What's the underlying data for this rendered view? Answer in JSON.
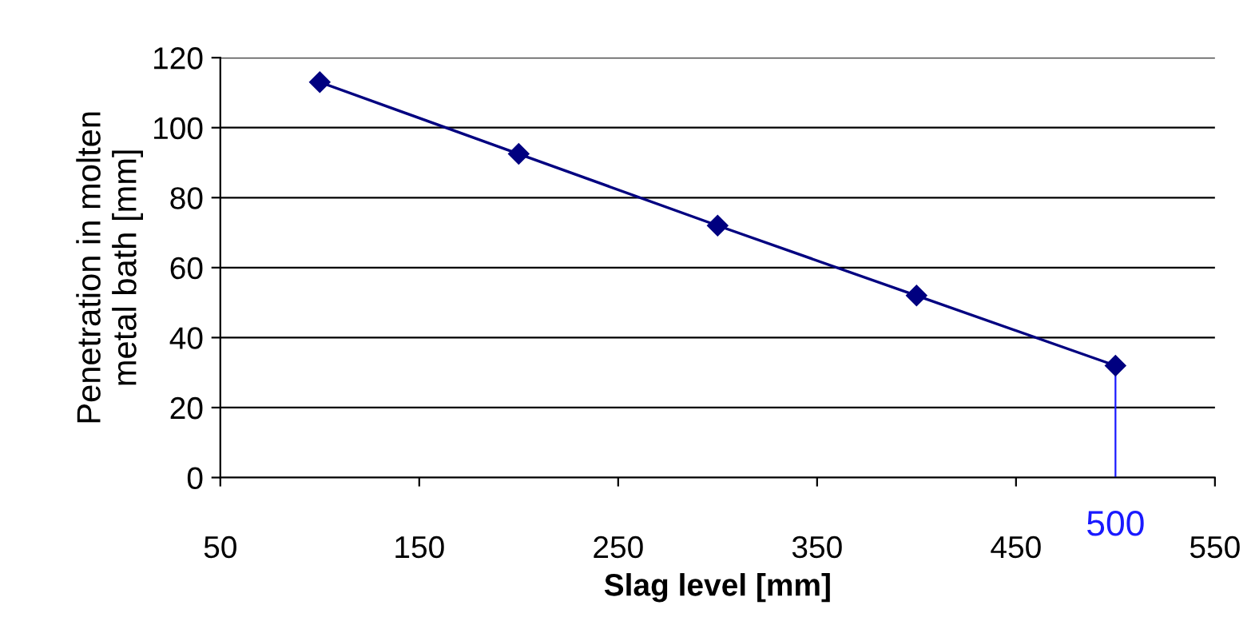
{
  "chart_data": {
    "type": "line",
    "xlabel": "Slag level [mm]",
    "ylabel": "Penetration in molten\nmetal bath [mm]",
    "x": [
      100,
      200,
      300,
      400,
      500
    ],
    "series": [
      {
        "color": "#000080",
        "values": [
          113,
          92.5,
          72,
          52,
          32
        ]
      }
    ],
    "xlim": [
      50,
      550
    ],
    "xticks": [
      50,
      150,
      250,
      350,
      450,
      550
    ],
    "ylim": [
      0,
      120
    ],
    "yticks": [
      0,
      20,
      40,
      60,
      80,
      100,
      120
    ],
    "grid": "y",
    "marker": "diamond",
    "line_style": "solid",
    "ref_lines": [
      {
        "axis": "x",
        "value": 500,
        "label": "500",
        "color": "#1a1aff"
      }
    ]
  }
}
